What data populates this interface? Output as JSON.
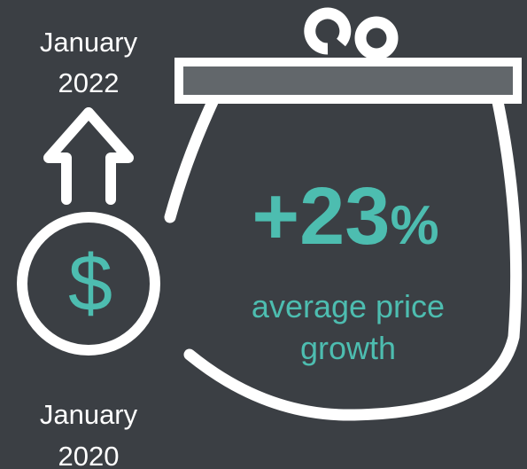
{
  "end_date": {
    "month": "January",
    "year": "2022"
  },
  "start_date": {
    "month": "January",
    "year": "2020"
  },
  "currency_symbol": "$",
  "stat": {
    "number": "+23",
    "unit": "%"
  },
  "caption": {
    "line1": "average price",
    "line2": "growth"
  }
}
